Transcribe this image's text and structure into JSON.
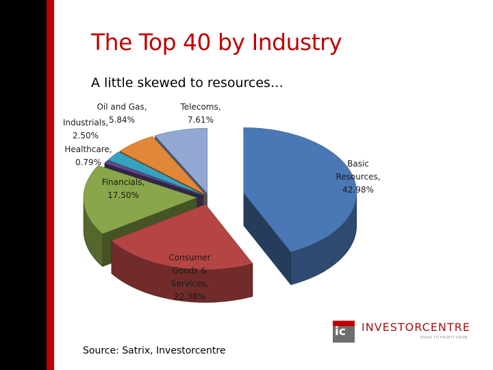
{
  "slide": {
    "title": "The Top 40 by Industry",
    "subtitle": "A little skewed to resources…",
    "source": "Source: Satrix, Investorcentre"
  },
  "logo": {
    "mark": "ic",
    "name": "INVESTORCENTRE",
    "tagline": "IDEAS TO PROFIT FROM"
  },
  "chart_data": {
    "type": "pie",
    "style": "3d exploded",
    "unit": "%",
    "categories": [
      "Basic Resources",
      "Consumer Goods & Services",
      "Financials",
      "Healthcare",
      "Industrials",
      "Oil and Gas",
      "Telecoms"
    ],
    "values": [
      42.98,
      22.38,
      17.5,
      0.79,
      2.5,
      5.84,
      7.61
    ],
    "colors": [
      "#4a78b6",
      "#b54543",
      "#8aa64a",
      "#614a8c",
      "#36a2c0",
      "#e08838",
      "#92a8d2"
    ],
    "labels": [
      [
        "Basic",
        "Resources,",
        "42.98%"
      ],
      [
        "Consumer",
        "Goods &",
        "Services,",
        "22.38%"
      ],
      [
        "Financials,",
        "17.50%"
      ],
      [
        "Healthcare,",
        "0.79%"
      ],
      [
        "Industrials,",
        "2.50%"
      ],
      [
        "Oil and Gas,",
        "5.84%"
      ],
      [
        "Telecoms,",
        "7.61%"
      ]
    ]
  }
}
